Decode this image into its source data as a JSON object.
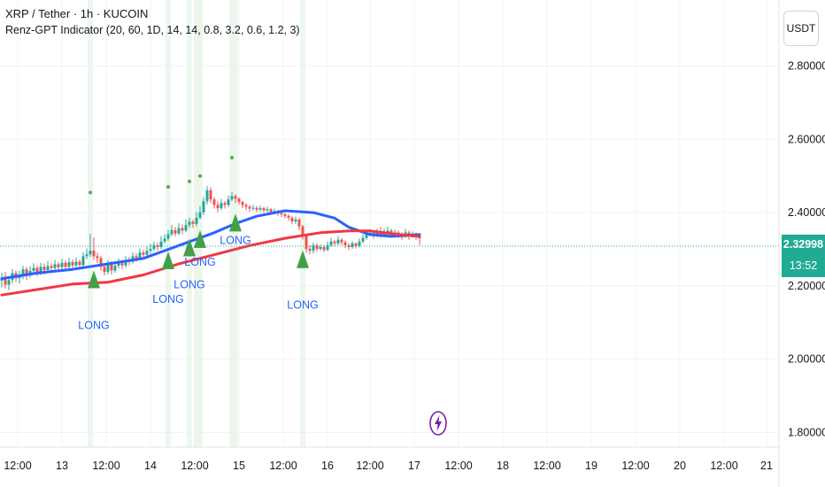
{
  "legend": {
    "symbol": "XRP / Tether · 1h · KUCOIN",
    "indicator": "Renz-GPT Indicator (20, 60, 1D, 14, 14, 0.8, 3.2, 0.6, 1.2, 3)"
  },
  "currency": "USDT",
  "price_tag": {
    "price": "2.32998",
    "countdown": "13:52"
  },
  "colors": {
    "up": "#26a69a",
    "down": "#ef5350",
    "ema_fast": "#2962ff",
    "ema_slow": "#f23645",
    "signal": "#43a047",
    "long_label": "#2962ff",
    "dot": "#4caf50",
    "highlight": "#e8f5e9"
  },
  "chart_data": {
    "type": "candlestick",
    "y_ticks": [
      "2.80000",
      "2.60000",
      "2.40000",
      "2.20000",
      "2.00000",
      "1.80000"
    ],
    "y_tick_values": [
      2.8,
      2.6,
      2.4,
      2.2,
      2.0,
      1.8
    ],
    "ylim": [
      1.76,
      2.98
    ],
    "x_ticks": [
      "12:00",
      "13",
      "12:00",
      "14",
      "12:00",
      "15",
      "12:00",
      "16",
      "12:00",
      "17",
      "12:00",
      "18",
      "12:00",
      "19",
      "12:00",
      "20",
      "12:00",
      "21"
    ],
    "last_price": 2.32998,
    "series": [
      {
        "name": "",
        "type": "line",
        "color": "#2962ff",
        "points": [
          [
            0,
            2.22
          ],
          [
            10,
            2.235
          ],
          [
            20,
            2.245
          ],
          [
            30,
            2.26
          ],
          [
            40,
            2.275
          ],
          [
            50,
            2.31
          ],
          [
            60,
            2.345
          ],
          [
            66,
            2.37
          ],
          [
            72,
            2.39
          ],
          [
            80,
            2.405
          ],
          [
            88,
            2.4
          ],
          [
            94,
            2.385
          ],
          [
            98,
            2.36
          ],
          [
            104,
            2.34
          ],
          [
            110,
            2.335
          ],
          [
            118,
            2.34
          ]
        ]
      },
      {
        "name": "",
        "type": "line",
        "color": "#f23645",
        "points": [
          [
            0,
            2.175
          ],
          [
            10,
            2.19
          ],
          [
            20,
            2.205
          ],
          [
            30,
            2.21
          ],
          [
            40,
            2.23
          ],
          [
            50,
            2.26
          ],
          [
            60,
            2.285
          ],
          [
            70,
            2.31
          ],
          [
            80,
            2.33
          ],
          [
            90,
            2.345
          ],
          [
            98,
            2.35
          ],
          [
            104,
            2.35
          ],
          [
            112,
            2.34
          ],
          [
            118,
            2.335
          ]
        ]
      }
    ],
    "candles": [
      [
        2.214,
        2.222,
        2.236,
        2.196
      ],
      [
        2.222,
        2.203,
        2.238,
        2.193
      ],
      [
        2.203,
        2.216,
        2.226,
        2.188
      ],
      [
        2.216,
        2.235,
        2.246,
        2.206
      ],
      [
        2.235,
        2.221,
        2.242,
        2.211
      ],
      [
        2.221,
        2.228,
        2.241,
        2.206
      ],
      [
        2.228,
        2.245,
        2.255,
        2.218
      ],
      [
        2.245,
        2.232,
        2.252,
        2.216
      ],
      [
        2.232,
        2.241,
        2.253,
        2.222
      ],
      [
        2.241,
        2.249,
        2.262,
        2.231
      ],
      [
        2.249,
        2.238,
        2.256,
        2.226
      ],
      [
        2.238,
        2.252,
        2.263,
        2.229
      ],
      [
        2.252,
        2.243,
        2.261,
        2.231
      ],
      [
        2.243,
        2.254,
        2.268,
        2.236
      ],
      [
        2.254,
        2.249,
        2.262,
        2.238
      ],
      [
        2.249,
        2.259,
        2.271,
        2.241
      ],
      [
        2.259,
        2.251,
        2.266,
        2.242
      ],
      [
        2.251,
        2.263,
        2.274,
        2.245
      ],
      [
        2.263,
        2.252,
        2.269,
        2.242
      ],
      [
        2.252,
        2.265,
        2.277,
        2.246
      ],
      [
        2.265,
        2.256,
        2.272,
        2.246
      ],
      [
        2.256,
        2.266,
        2.278,
        2.248
      ],
      [
        2.266,
        2.257,
        2.272,
        2.248
      ],
      [
        2.257,
        2.281,
        2.292,
        2.251
      ],
      [
        2.281,
        2.286,
        2.302,
        2.273
      ],
      [
        2.286,
        2.296,
        2.342,
        2.279
      ],
      [
        2.296,
        2.281,
        2.332,
        2.271
      ],
      [
        2.281,
        2.276,
        2.291,
        2.262
      ],
      [
        2.276,
        2.252,
        2.282,
        2.241
      ],
      [
        2.252,
        2.238,
        2.261,
        2.228
      ],
      [
        2.238,
        2.261,
        2.271,
        2.231
      ],
      [
        2.261,
        2.242,
        2.268,
        2.231
      ],
      [
        2.242,
        2.255,
        2.266,
        2.236
      ],
      [
        2.255,
        2.262,
        2.275,
        2.248
      ],
      [
        2.262,
        2.256,
        2.271,
        2.246
      ],
      [
        2.256,
        2.271,
        2.281,
        2.249
      ],
      [
        2.271,
        2.266,
        2.279,
        2.256
      ],
      [
        2.266,
        2.281,
        2.292,
        2.261
      ],
      [
        2.281,
        2.276,
        2.289,
        2.266
      ],
      [
        2.276,
        2.291,
        2.302,
        2.271
      ],
      [
        2.291,
        2.285,
        2.298,
        2.276
      ],
      [
        2.285,
        2.296,
        2.308,
        2.281
      ],
      [
        2.296,
        2.301,
        2.315,
        2.288
      ],
      [
        2.301,
        2.311,
        2.321,
        2.295
      ],
      [
        2.311,
        2.306,
        2.318,
        2.296
      ],
      [
        2.306,
        2.321,
        2.336,
        2.301
      ],
      [
        2.321,
        2.329,
        2.341,
        2.316
      ],
      [
        2.329,
        2.341,
        2.352,
        2.323
      ],
      [
        2.341,
        2.352,
        2.366,
        2.336
      ],
      [
        2.352,
        2.343,
        2.361,
        2.335
      ],
      [
        2.343,
        2.358,
        2.371,
        2.338
      ],
      [
        2.358,
        2.351,
        2.368,
        2.341
      ],
      [
        2.351,
        2.366,
        2.381,
        2.346
      ],
      [
        2.366,
        2.375,
        2.386,
        2.358
      ],
      [
        2.375,
        2.369,
        2.381,
        2.358
      ],
      [
        2.369,
        2.386,
        2.401,
        2.362
      ],
      [
        2.386,
        2.401,
        2.418,
        2.381
      ],
      [
        2.401,
        2.431,
        2.442,
        2.393
      ],
      [
        2.431,
        2.461,
        2.472,
        2.422
      ],
      [
        2.461,
        2.436,
        2.469,
        2.426
      ],
      [
        2.436,
        2.421,
        2.442,
        2.411
      ],
      [
        2.421,
        2.412,
        2.431,
        2.401
      ],
      [
        2.412,
        2.426,
        2.438,
        2.406
      ],
      [
        2.426,
        2.421,
        2.432,
        2.411
      ],
      [
        2.421,
        2.436,
        2.446,
        2.415
      ],
      [
        2.436,
        2.445,
        2.456,
        2.431
      ],
      [
        2.445,
        2.438,
        2.451,
        2.426
      ],
      [
        2.438,
        2.429,
        2.442,
        2.421
      ],
      [
        2.429,
        2.421,
        2.432,
        2.412
      ],
      [
        2.421,
        2.416,
        2.426,
        2.406
      ],
      [
        2.416,
        2.411,
        2.421,
        2.402
      ],
      [
        2.411,
        2.413,
        2.421,
        2.405
      ],
      [
        2.413,
        2.408,
        2.418,
        2.401
      ],
      [
        2.408,
        2.412,
        2.419,
        2.403
      ],
      [
        2.412,
        2.406,
        2.416,
        2.399
      ],
      [
        2.406,
        2.409,
        2.416,
        2.401
      ],
      [
        2.409,
        2.401,
        2.412,
        2.395
      ],
      [
        2.401,
        2.404,
        2.411,
        2.396
      ],
      [
        2.404,
        2.398,
        2.408,
        2.391
      ],
      [
        2.398,
        2.395,
        2.403,
        2.388
      ],
      [
        2.395,
        2.391,
        2.399,
        2.384
      ],
      [
        2.391,
        2.386,
        2.396,
        2.378
      ],
      [
        2.386,
        2.376,
        2.391,
        2.368
      ],
      [
        2.376,
        2.381,
        2.389,
        2.369
      ],
      [
        2.381,
        2.362,
        2.386,
        2.352
      ],
      [
        2.362,
        2.336,
        2.366,
        2.326
      ],
      [
        2.336,
        2.301,
        2.341,
        2.291
      ],
      [
        2.301,
        2.296,
        2.311,
        2.286
      ],
      [
        2.296,
        2.311,
        2.318,
        2.288
      ],
      [
        2.311,
        2.301,
        2.316,
        2.293
      ],
      [
        2.301,
        2.306,
        2.313,
        2.296
      ],
      [
        2.306,
        2.298,
        2.311,
        2.292
      ],
      [
        2.298,
        2.311,
        2.321,
        2.295
      ],
      [
        2.311,
        2.321,
        2.331,
        2.306
      ],
      [
        2.321,
        2.316,
        2.326,
        2.308
      ],
      [
        2.316,
        2.326,
        2.336,
        2.311
      ],
      [
        2.326,
        2.319,
        2.331,
        2.311
      ],
      [
        2.319,
        2.311,
        2.324,
        2.303
      ],
      [
        2.311,
        2.306,
        2.316,
        2.298
      ],
      [
        2.306,
        2.316,
        2.322,
        2.301
      ],
      [
        2.316,
        2.309,
        2.319,
        2.302
      ],
      [
        2.309,
        2.321,
        2.329,
        2.305
      ],
      [
        2.321,
        2.331,
        2.341,
        2.316
      ],
      [
        2.331,
        2.341,
        2.352,
        2.326
      ],
      [
        2.341,
        2.345,
        2.355,
        2.336
      ],
      [
        2.345,
        2.338,
        2.349,
        2.329
      ],
      [
        2.338,
        2.346,
        2.356,
        2.333
      ],
      [
        2.346,
        2.339,
        2.361,
        2.331
      ],
      [
        2.339,
        2.346,
        2.356,
        2.334
      ],
      [
        2.346,
        2.351,
        2.362,
        2.341
      ],
      [
        2.351,
        2.341,
        2.356,
        2.336
      ],
      [
        2.341,
        2.346,
        2.354,
        2.336
      ],
      [
        2.346,
        2.341,
        2.351,
        2.331
      ],
      [
        2.341,
        2.336,
        2.346,
        2.326
      ],
      [
        2.336,
        2.346,
        2.356,
        2.331
      ],
      [
        2.346,
        2.336,
        2.351,
        2.326
      ],
      [
        2.336,
        2.341,
        2.349,
        2.331
      ],
      [
        2.341,
        2.333,
        2.346,
        2.326
      ],
      [
        2.333,
        2.33,
        2.341,
        2.311
      ]
    ],
    "signals": [
      {
        "bar": 26,
        "label": "LONG"
      },
      {
        "bar": 47,
        "label": "LONG"
      },
      {
        "bar": 53,
        "label": "LONG"
      },
      {
        "bar": 56,
        "label": "LONG"
      },
      {
        "bar": 66,
        "label": "LONG"
      },
      {
        "bar": 85,
        "label": "LONG"
      }
    ],
    "dots": [
      {
        "bar": 25,
        "y": 2.455
      },
      {
        "bar": 47,
        "y": 2.47
      },
      {
        "bar": 53,
        "y": 2.485
      },
      {
        "bar": 56,
        "y": 2.5
      },
      {
        "bar": 65,
        "y": 2.55
      }
    ],
    "highlight_bars": [
      25,
      47,
      53,
      55,
      56,
      65,
      66,
      85
    ]
  }
}
